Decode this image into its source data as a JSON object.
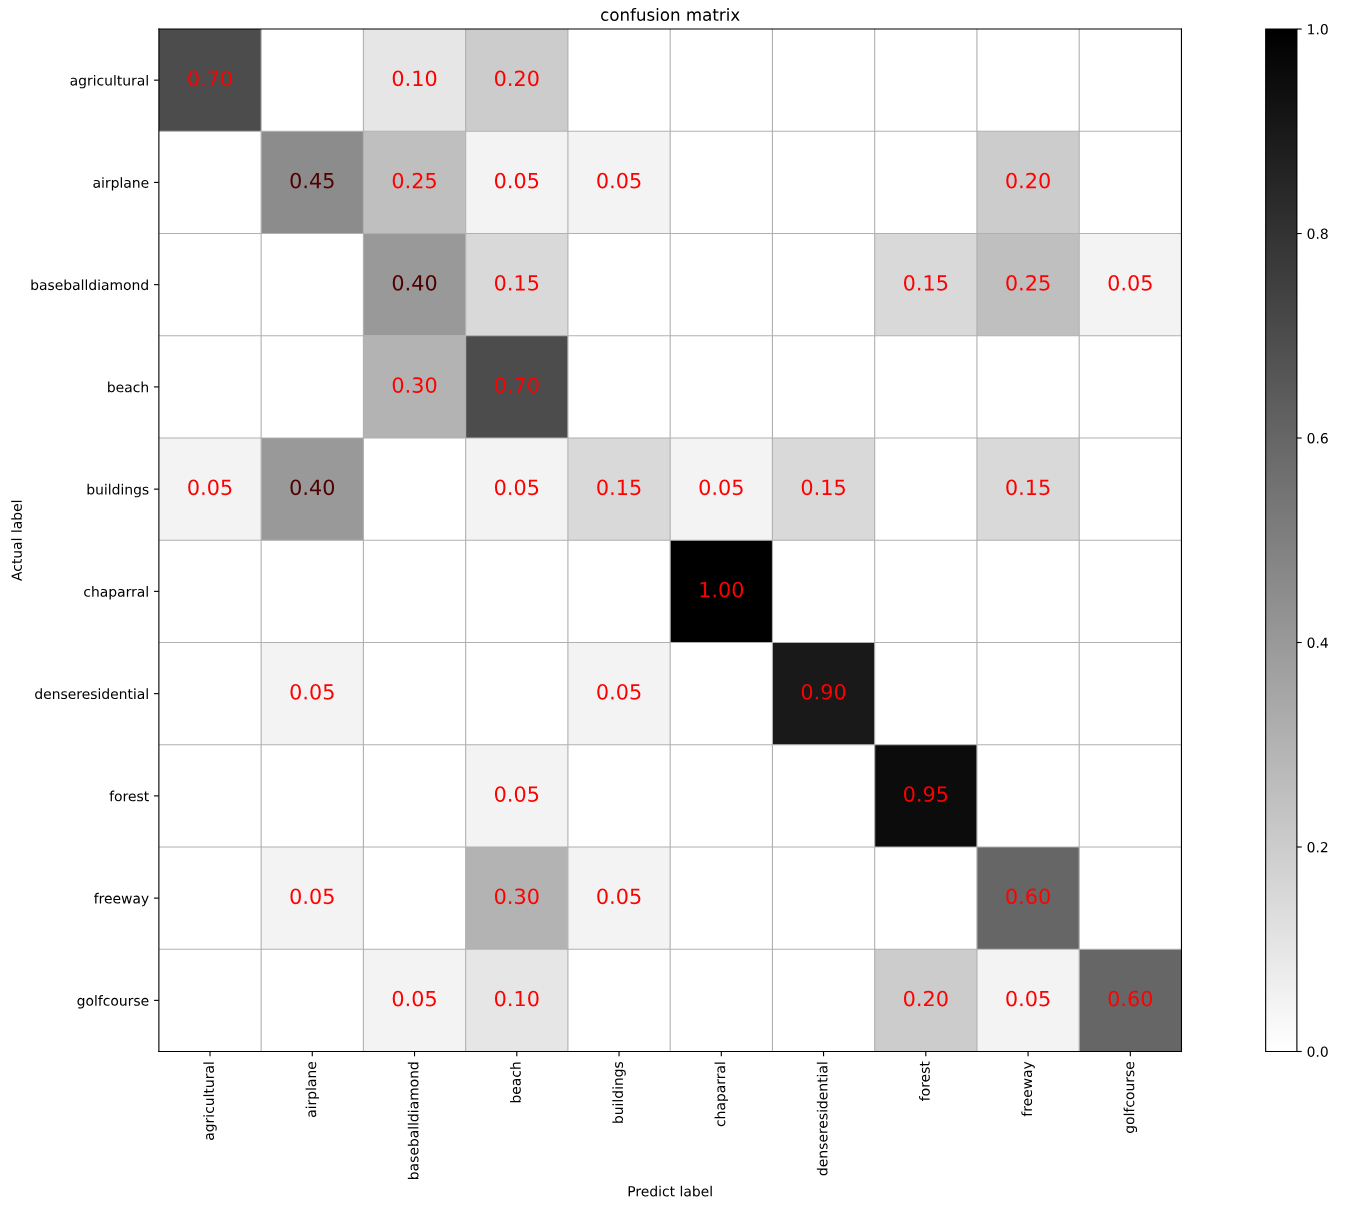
{
  "chart_data": {
    "type": "heatmap",
    "title": "confusion matrix",
    "xlabel": "Predict label",
    "ylabel": "Actual label",
    "categories": [
      "agricultural",
      "airplane",
      "baseballdiamond",
      "beach",
      "buildings",
      "chaparral",
      "denseresidential",
      "forest",
      "freeway",
      "golfcourse"
    ],
    "y_categories": [
      "agricultural",
      "airplane",
      "baseballdiamond",
      "beach",
      "buildings",
      "chaparral",
      "denseresidential",
      "forest",
      "freeway",
      "golfcourse"
    ],
    "cells": [
      [
        0.7,
        null,
        0.1,
        0.2,
        null,
        null,
        null,
        null,
        null,
        null
      ],
      [
        null,
        0.45,
        0.25,
        0.05,
        0.05,
        null,
        null,
        null,
        0.2,
        null
      ],
      [
        null,
        null,
        0.4,
        0.15,
        null,
        null,
        null,
        0.15,
        0.25,
        0.05
      ],
      [
        null,
        null,
        0.3,
        0.7,
        null,
        null,
        null,
        null,
        null,
        null
      ],
      [
        0.05,
        0.4,
        null,
        0.05,
        0.15,
        0.05,
        0.15,
        null,
        0.15,
        null
      ],
      [
        null,
        null,
        null,
        null,
        null,
        1.0,
        null,
        null,
        null,
        null
      ],
      [
        null,
        0.05,
        null,
        null,
        0.05,
        null,
        0.9,
        null,
        null,
        null
      ],
      [
        null,
        null,
        null,
        0.05,
        null,
        null,
        null,
        0.95,
        null,
        null
      ],
      [
        null,
        0.05,
        null,
        0.3,
        0.05,
        null,
        null,
        null,
        0.6,
        null
      ],
      [
        null,
        null,
        0.05,
        0.1,
        null,
        null,
        null,
        0.2,
        0.05,
        0.6
      ]
    ],
    "cell_labels": [
      [
        "0.70",
        null,
        "0.10",
        "0.20",
        null,
        null,
        null,
        null,
        null,
        null
      ],
      [
        null,
        "0.45",
        "0.25",
        "0.05",
        "0.05",
        null,
        null,
        null,
        "0.20",
        null
      ],
      [
        null,
        null,
        "0.40",
        "0.15",
        null,
        null,
        null,
        "0.15",
        "0.25",
        "0.05"
      ],
      [
        null,
        null,
        "0.30",
        "0.70",
        null,
        null,
        null,
        null,
        null,
        null
      ],
      [
        "0.05",
        "0.40",
        null,
        "0.05",
        "0.15",
        "0.05",
        "0.15",
        null,
        "0.15",
        null
      ],
      [
        null,
        null,
        null,
        null,
        null,
        "1.00",
        null,
        null,
        null,
        null
      ],
      [
        null,
        "0.05",
        null,
        null,
        "0.05",
        null,
        "0.90",
        null,
        null,
        null
      ],
      [
        null,
        null,
        null,
        "0.05",
        null,
        null,
        null,
        "0.95",
        null,
        null
      ],
      [
        null,
        "0.05",
        null,
        "0.30",
        "0.05",
        null,
        null,
        null,
        "0.60",
        null
      ],
      [
        null,
        null,
        "0.05",
        "0.10",
        null,
        null,
        null,
        "0.20",
        "0.05",
        "0.60"
      ]
    ],
    "clim": [
      0,
      1
    ],
    "cticks": [
      {
        "value": 0,
        "label": "0.0"
      },
      0.2,
      0.4,
      0.6,
      0.8,
      {
        "value": 1,
        "label": "1.0"
      }
    ],
    "grid": true
  }
}
